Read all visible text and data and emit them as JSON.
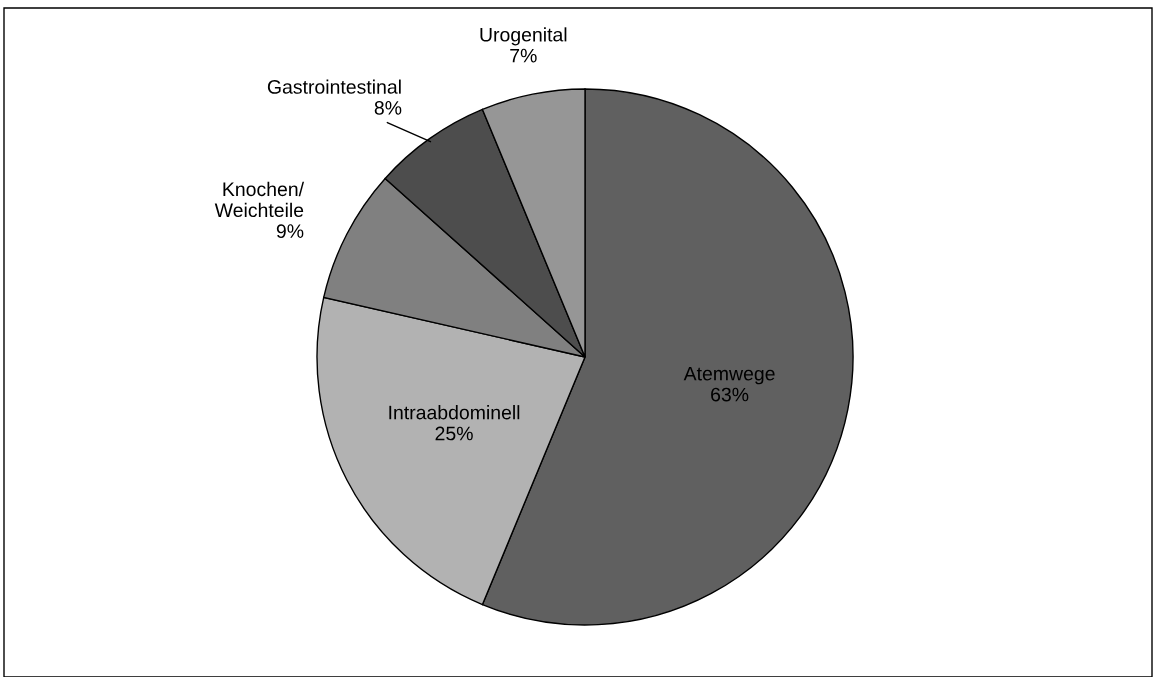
{
  "chart_data": {
    "type": "pie",
    "categories": [
      "Atemwege",
      "Intraabdominell",
      "Knochen/\nWeichteile",
      "Gastrointestinal",
      "Urogenital"
    ],
    "values": [
      63,
      25,
      9,
      8,
      7
    ],
    "value_labels": [
      "63%",
      "25%",
      "9%",
      "8%",
      "7%"
    ],
    "colors": [
      "#606060",
      "#b2b2b2",
      "#808080",
      "#4d4d4d",
      "#969696"
    ]
  }
}
